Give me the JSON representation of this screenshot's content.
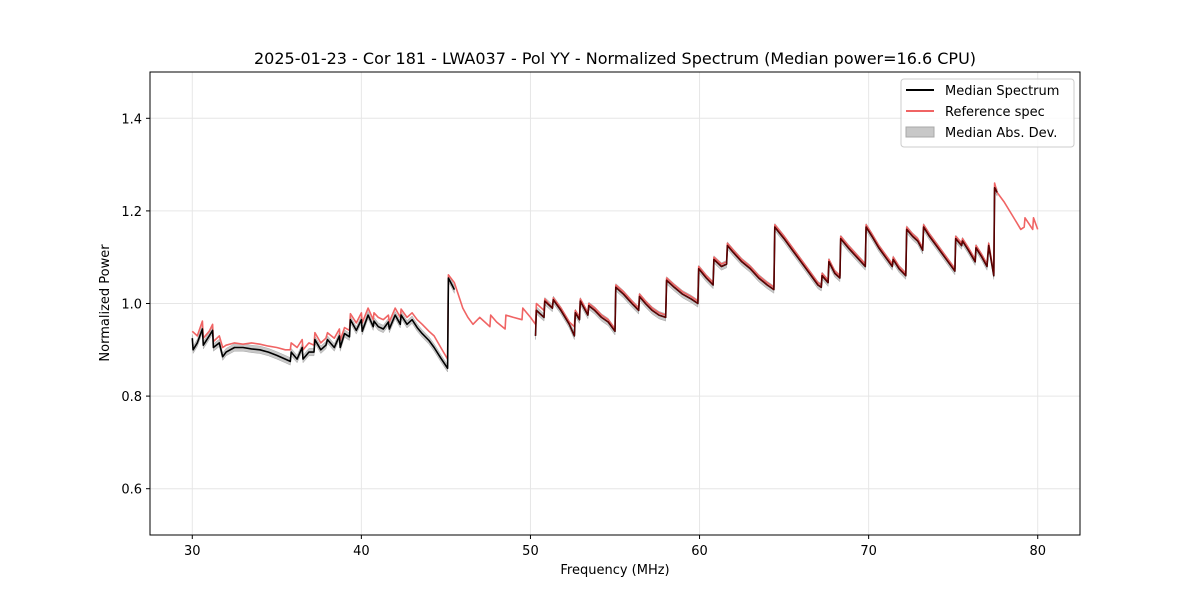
{
  "chart_data": {
    "type": "line",
    "title": "2025-01-23 - Cor 181 - LWA037 - Pol YY - Normalized Spectrum (Median power=16.6 CPU)",
    "xlabel": "Frequency (MHz)",
    "ylabel": "Normalized Power",
    "xlim": [
      27.5,
      82.5
    ],
    "ylim": [
      0.5,
      1.5
    ],
    "xticks": [
      30,
      40,
      50,
      60,
      70,
      80
    ],
    "yticks": [
      0.6,
      0.8,
      1.0,
      1.2,
      1.4
    ],
    "xtick_labels": [
      "30",
      "40",
      "50",
      "60",
      "70",
      "80"
    ],
    "ytick_labels": [
      "0.6",
      "0.8",
      "1.0",
      "1.2",
      "1.4"
    ],
    "grid": true,
    "legend_position": "top-right",
    "legend": [
      "Median Spectrum",
      "Reference spec",
      "Median Abs. Dev."
    ],
    "colors": {
      "median": "#000000",
      "reference": "#f06464",
      "mad_fill": "#c8c8c8",
      "mad_edge": "#a8a8a8",
      "grid": "#e6e6e6",
      "axes": "#000000"
    },
    "mad_halfwidth": 0.008,
    "series": [
      {
        "name": "Reference spec",
        "x": [
          30.0,
          30.3,
          30.6,
          30.65,
          31.0,
          31.2,
          31.25,
          31.6,
          31.8,
          32.0,
          32.5,
          33.0,
          33.5,
          34.0,
          34.5,
          35.0,
          35.5,
          35.8,
          35.85,
          36.2,
          36.5,
          36.55,
          36.9,
          37.2,
          37.25,
          37.6,
          37.9,
          38.0,
          38.4,
          38.7,
          38.75,
          39.0,
          39.3,
          39.35,
          39.7,
          40.0,
          40.05,
          40.4,
          40.7,
          40.75,
          41.0,
          41.3,
          41.6,
          41.65,
          42.0,
          42.3,
          42.35,
          42.7,
          43.0,
          43.3,
          43.6,
          44.0,
          44.3,
          44.7,
          45.1,
          45.15,
          45.5,
          46.0,
          46.3,
          46.6,
          47.0,
          47.3,
          47.6,
          47.65,
          48.0,
          48.5,
          48.55,
          49.0,
          49.5,
          49.55,
          50.0,
          50.3,
          50.35,
          50.8,
          50.85,
          51.3,
          51.35,
          51.8,
          52.3,
          52.6,
          52.65,
          52.9,
          52.95,
          53.4,
          53.45,
          53.8,
          54.2,
          54.6,
          55.0,
          55.05,
          55.5,
          56.0,
          56.4,
          56.45,
          56.8,
          57.2,
          57.6,
          58.0,
          58.05,
          58.5,
          59.0,
          59.5,
          59.9,
          59.95,
          60.4,
          60.8,
          60.85,
          61.3,
          61.6,
          61.65,
          62.0,
          62.5,
          63.0,
          63.5,
          64.0,
          64.4,
          64.45,
          65.0,
          65.5,
          66.0,
          66.5,
          67.0,
          67.2,
          67.25,
          67.6,
          67.65,
          68.0,
          68.3,
          68.35,
          68.8,
          69.3,
          69.8,
          69.85,
          70.2,
          70.6,
          71.0,
          71.4,
          71.45,
          71.8,
          72.2,
          72.25,
          72.6,
          72.9,
          73.2,
          73.25,
          73.6,
          74.0,
          74.5,
          75.1,
          75.15,
          75.5,
          75.55,
          75.9,
          76.3,
          76.35,
          76.7,
          77.0,
          77.1,
          77.4,
          77.45,
          77.6,
          78.0,
          78.5,
          79.0,
          79.2,
          79.25,
          79.7,
          79.75,
          80.0
        ],
        "y": [
          0.94,
          0.93,
          0.962,
          0.925,
          0.94,
          0.955,
          0.918,
          0.93,
          0.905,
          0.91,
          0.915,
          0.912,
          0.915,
          0.912,
          0.908,
          0.905,
          0.9,
          0.9,
          0.915,
          0.905,
          0.922,
          0.9,
          0.915,
          0.91,
          0.937,
          0.915,
          0.925,
          0.937,
          0.925,
          0.945,
          0.92,
          0.948,
          0.942,
          0.978,
          0.958,
          0.98,
          0.958,
          0.99,
          0.965,
          0.98,
          0.97,
          0.965,
          0.975,
          0.96,
          0.99,
          0.97,
          0.988,
          0.97,
          0.98,
          0.965,
          0.955,
          0.94,
          0.93,
          0.905,
          0.88,
          1.062,
          1.045,
          0.99,
          0.97,
          0.955,
          0.97,
          0.96,
          0.95,
          0.975,
          0.96,
          0.945,
          0.975,
          0.97,
          0.965,
          0.99,
          0.97,
          0.955,
          1.0,
          0.985,
          1.01,
          0.99,
          1.012,
          0.99,
          0.96,
          0.95,
          0.985,
          0.97,
          1.01,
          0.98,
          1.0,
          0.99,
          0.975,
          0.965,
          0.945,
          1.04,
          1.025,
          1.005,
          0.99,
          1.02,
          1.005,
          0.99,
          0.98,
          0.975,
          1.055,
          1.04,
          1.025,
          1.015,
          1.005,
          1.08,
          1.06,
          1.045,
          1.1,
          1.085,
          1.09,
          1.13,
          1.115,
          1.095,
          1.08,
          1.06,
          1.045,
          1.035,
          1.17,
          1.145,
          1.12,
          1.095,
          1.07,
          1.045,
          1.04,
          1.065,
          1.05,
          1.095,
          1.07,
          1.06,
          1.145,
          1.125,
          1.105,
          1.085,
          1.17,
          1.15,
          1.125,
          1.105,
          1.085,
          1.1,
          1.08,
          1.065,
          1.165,
          1.15,
          1.14,
          1.12,
          1.17,
          1.15,
          1.13,
          1.105,
          1.075,
          1.145,
          1.13,
          1.14,
          1.12,
          1.095,
          1.125,
          1.105,
          1.085,
          1.13,
          1.065,
          1.26,
          1.24,
          1.22,
          1.19,
          1.16,
          1.165,
          1.185,
          1.16,
          1.185,
          1.16
        ]
      },
      {
        "name": "Median Spectrum",
        "segments": [
          {
            "x": [
              30.0,
              30.05,
              30.3,
              30.6,
              30.65,
              31.0,
              31.2,
              31.25,
              31.6,
              31.8,
              32.0,
              32.5,
              33.0,
              33.5,
              34.0,
              34.5,
              35.0,
              35.5,
              35.8,
              35.85,
              36.2,
              36.5,
              36.55,
              36.9,
              37.2,
              37.25,
              37.6,
              37.9,
              38.0,
              38.4,
              38.7,
              38.75,
              39.0,
              39.3,
              39.35,
              39.7,
              40.0,
              40.05,
              40.4,
              40.7,
              40.75,
              41.0,
              41.3,
              41.6,
              41.65,
              42.0,
              42.3,
              42.35,
              42.7,
              43.0,
              43.3,
              43.6,
              44.0,
              44.3,
              44.7,
              45.1,
              45.15,
              45.5
            ],
            "y": [
              0.925,
              0.9,
              0.915,
              0.945,
              0.91,
              0.93,
              0.942,
              0.905,
              0.915,
              0.885,
              0.895,
              0.905,
              0.905,
              0.902,
              0.9,
              0.895,
              0.888,
              0.88,
              0.875,
              0.895,
              0.88,
              0.905,
              0.88,
              0.895,
              0.895,
              0.922,
              0.9,
              0.91,
              0.922,
              0.905,
              0.93,
              0.905,
              0.935,
              0.928,
              0.965,
              0.942,
              0.965,
              0.94,
              0.975,
              0.95,
              0.962,
              0.95,
              0.945,
              0.96,
              0.945,
              0.975,
              0.955,
              0.975,
              0.955,
              0.965,
              0.948,
              0.935,
              0.92,
              0.905,
              0.882,
              0.86,
              1.055,
              1.03
            ]
          },
          {
            "x": [
              50.3,
              50.35,
              50.8,
              50.85,
              51.3,
              51.35,
              51.8,
              52.3,
              52.6,
              52.65,
              52.9,
              52.95,
              53.4,
              53.45,
              53.8,
              54.2,
              54.6,
              55.0,
              55.05,
              55.5,
              56.0,
              56.4,
              56.45,
              56.8,
              57.2,
              57.6,
              58.0,
              58.05,
              58.5,
              59.0,
              59.5,
              59.9,
              59.95,
              60.4,
              60.8,
              60.85,
              61.3,
              61.6,
              61.65,
              62.0,
              62.5,
              63.0,
              63.5,
              64.0,
              64.4,
              64.45,
              65.0,
              65.5,
              66.0,
              66.5,
              67.0,
              67.2,
              67.25,
              67.6,
              67.65,
              68.0,
              68.3,
              68.35,
              68.8,
              69.3,
              69.8,
              69.85,
              70.2,
              70.6,
              71.0,
              71.4,
              71.45,
              71.8,
              72.2,
              72.25,
              72.6,
              72.9,
              73.2,
              73.25,
              73.6,
              74.0,
              74.5,
              75.1,
              75.15,
              75.5,
              75.55,
              75.9,
              76.3,
              76.35,
              76.7,
              77.0,
              77.1,
              77.4,
              77.45,
              77.6
            ],
            "y": [
              0.93,
              0.985,
              0.97,
              1.005,
              0.99,
              1.008,
              0.985,
              0.955,
              0.93,
              0.98,
              0.965,
              1.005,
              0.975,
              0.995,
              0.985,
              0.97,
              0.96,
              0.94,
              1.035,
              1.02,
              1.0,
              0.985,
              1.015,
              1.0,
              0.985,
              0.975,
              0.97,
              1.05,
              1.035,
              1.02,
              1.01,
              1.0,
              1.075,
              1.055,
              1.04,
              1.095,
              1.08,
              1.085,
              1.125,
              1.11,
              1.09,
              1.075,
              1.055,
              1.04,
              1.03,
              1.165,
              1.14,
              1.115,
              1.09,
              1.065,
              1.04,
              1.035,
              1.06,
              1.045,
              1.09,
              1.065,
              1.055,
              1.14,
              1.12,
              1.1,
              1.08,
              1.165,
              1.145,
              1.12,
              1.1,
              1.08,
              1.095,
              1.075,
              1.06,
              1.16,
              1.145,
              1.135,
              1.115,
              1.165,
              1.145,
              1.125,
              1.1,
              1.07,
              1.14,
              1.125,
              1.135,
              1.115,
              1.09,
              1.12,
              1.1,
              1.08,
              1.125,
              1.06,
              1.25,
              1.24
            ]
          }
        ]
      }
    ]
  }
}
